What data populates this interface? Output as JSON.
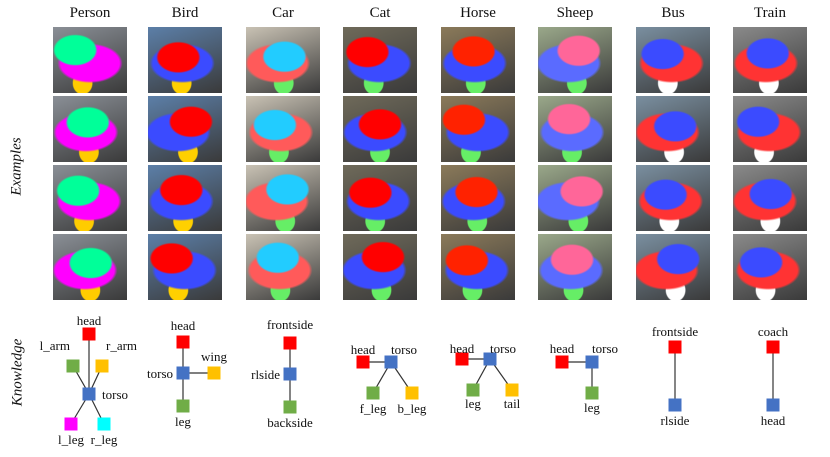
{
  "categories": [
    "Person",
    "Bird",
    "Car",
    "Cat",
    "Horse",
    "Sheep",
    "Bus",
    "Train"
  ],
  "row_labels": {
    "examples": "Examples",
    "knowledge": "Knowledge"
  },
  "colors": {
    "red": "#ff0000",
    "blue": "#4472c4",
    "yellow": "#ffc000",
    "green": "#70ad47",
    "magenta": "#ff00ff",
    "cyan": "#00ffff",
    "edge": "#333333"
  },
  "knowledge_graphs": [
    {
      "category": "Person",
      "nodes": [
        {
          "id": "head",
          "label": "head",
          "color": "red"
        },
        {
          "id": "l_arm",
          "label": "l_arm",
          "color": "green"
        },
        {
          "id": "r_arm",
          "label": "r_arm",
          "color": "yellow"
        },
        {
          "id": "torso",
          "label": "torso",
          "color": "blue"
        },
        {
          "id": "l_leg",
          "label": "l_leg",
          "color": "magenta"
        },
        {
          "id": "r_leg",
          "label": "r_leg",
          "color": "cyan"
        }
      ],
      "edges": [
        [
          "head",
          "torso"
        ],
        [
          "l_arm",
          "torso"
        ],
        [
          "r_arm",
          "torso"
        ],
        [
          "torso",
          "l_leg"
        ],
        [
          "torso",
          "r_leg"
        ]
      ]
    },
    {
      "category": "Bird",
      "nodes": [
        {
          "id": "head",
          "label": "head",
          "color": "red"
        },
        {
          "id": "torso",
          "label": "torso",
          "color": "blue"
        },
        {
          "id": "wing",
          "label": "wing",
          "color": "yellow"
        },
        {
          "id": "leg",
          "label": "leg",
          "color": "green"
        }
      ],
      "edges": [
        [
          "head",
          "torso"
        ],
        [
          "torso",
          "wing"
        ],
        [
          "torso",
          "leg"
        ]
      ]
    },
    {
      "category": "Car",
      "nodes": [
        {
          "id": "frontside",
          "label": "frontside",
          "color": "red"
        },
        {
          "id": "rlside",
          "label": "rlside",
          "color": "blue"
        },
        {
          "id": "backside",
          "label": "backside",
          "color": "green"
        }
      ],
      "edges": [
        [
          "frontside",
          "rlside"
        ],
        [
          "rlside",
          "backside"
        ]
      ]
    },
    {
      "category": "Cat",
      "nodes": [
        {
          "id": "head",
          "label": "head",
          "color": "red"
        },
        {
          "id": "torso",
          "label": "torso",
          "color": "blue"
        },
        {
          "id": "f_leg",
          "label": "f_leg",
          "color": "green"
        },
        {
          "id": "b_leg",
          "label": "b_leg",
          "color": "yellow"
        }
      ],
      "edges": [
        [
          "head",
          "torso"
        ],
        [
          "torso",
          "f_leg"
        ],
        [
          "torso",
          "b_leg"
        ]
      ]
    },
    {
      "category": "Horse",
      "nodes": [
        {
          "id": "head",
          "label": "head",
          "color": "red"
        },
        {
          "id": "torso",
          "label": "torso",
          "color": "blue"
        },
        {
          "id": "leg",
          "label": "leg",
          "color": "green"
        },
        {
          "id": "tail",
          "label": "tail",
          "color": "yellow"
        }
      ],
      "edges": [
        [
          "head",
          "torso"
        ],
        [
          "torso",
          "leg"
        ],
        [
          "torso",
          "tail"
        ]
      ]
    },
    {
      "category": "Sheep",
      "nodes": [
        {
          "id": "head",
          "label": "head",
          "color": "red"
        },
        {
          "id": "torso",
          "label": "torso",
          "color": "blue"
        },
        {
          "id": "leg",
          "label": "leg",
          "color": "green"
        }
      ],
      "edges": [
        [
          "head",
          "torso"
        ],
        [
          "torso",
          "leg"
        ]
      ]
    },
    {
      "category": "Bus",
      "nodes": [
        {
          "id": "frontside",
          "label": "frontside",
          "color": "red"
        },
        {
          "id": "rlside",
          "label": "rlside",
          "color": "blue"
        }
      ],
      "edges": [
        [
          "frontside",
          "rlside"
        ]
      ]
    },
    {
      "category": "Train",
      "nodes": [
        {
          "id": "coach",
          "label": "coach",
          "color": "red"
        },
        {
          "id": "head",
          "label": "head",
          "color": "blue"
        }
      ],
      "edges": [
        [
          "coach",
          "head"
        ]
      ]
    }
  ]
}
